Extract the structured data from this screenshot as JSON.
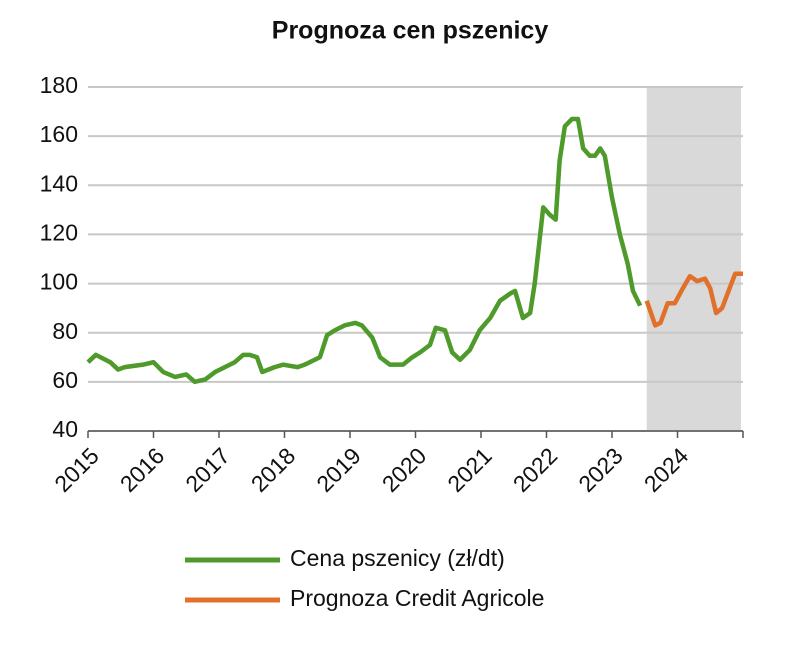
{
  "chart_data": {
    "type": "line",
    "title": "Prognoza cen pszenicy",
    "xlim": [
      2015,
      2025
    ],
    "xticks": [
      2015,
      2016,
      2017,
      2018,
      2019,
      2020,
      2021,
      2022,
      2023,
      2024
    ],
    "ylim": [
      40,
      180
    ],
    "yticks": [
      40,
      60,
      80,
      100,
      120,
      140,
      160,
      180
    ],
    "grid": true,
    "shade": [
      2023.53,
      2024.97
    ],
    "shade_color": "#d9d9d9",
    "series": [
      {
        "name": "Cena pszenicy (zł/dt)",
        "color": "#4e9a2a",
        "x": [
          2015.0,
          2015.12,
          2015.34,
          2015.46,
          2015.56,
          2015.84,
          2016.0,
          2016.15,
          2016.33,
          2016.5,
          2016.63,
          2016.79,
          2016.94,
          2017.09,
          2017.24,
          2017.37,
          2017.47,
          2017.58,
          2017.66,
          2017.85,
          2017.98,
          2018.2,
          2018.31,
          2018.54,
          2018.65,
          2018.77,
          2018.92,
          2019.08,
          2019.18,
          2019.34,
          2019.46,
          2019.61,
          2019.81,
          2019.95,
          2020.07,
          2020.22,
          2020.31,
          2020.45,
          2020.56,
          2020.68,
          2020.83,
          2020.98,
          2021.14,
          2021.29,
          2021.45,
          2021.52,
          2021.64,
          2021.75,
          2021.82,
          2021.95,
          2022.05,
          2022.14,
          2022.2,
          2022.28,
          2022.39,
          2022.48,
          2022.56,
          2022.66,
          2022.74,
          2022.82,
          2022.89,
          2023.0,
          2023.12,
          2023.24,
          2023.32,
          2023.43
        ],
        "values": [
          68,
          71,
          68,
          65,
          66,
          67,
          68,
          64,
          62,
          63,
          60,
          61,
          64,
          66,
          68,
          71,
          71,
          70,
          64,
          66,
          67,
          66,
          67,
          70,
          79,
          81,
          83,
          84,
          83,
          78,
          70,
          67,
          67,
          70,
          72,
          75,
          82,
          81,
          72,
          69,
          73,
          81,
          86,
          93,
          96,
          97,
          86,
          88,
          100,
          131,
          128,
          126,
          150,
          164,
          167,
          167,
          155,
          152,
          152,
          155,
          152,
          135,
          120,
          108,
          97,
          91
        ]
      },
      {
        "name": "Prognoza Credit Agricole",
        "color": "#e0702a",
        "x": [
          2023.53,
          2023.66,
          2023.74,
          2023.85,
          2023.96,
          2024.08,
          2024.19,
          2024.3,
          2024.42,
          2024.5,
          2024.59,
          2024.68,
          2024.88,
          2025.0
        ],
        "values": [
          93,
          83,
          84,
          92,
          92,
          98,
          103,
          101,
          102,
          98,
          88,
          90,
          104,
          104
        ]
      }
    ]
  }
}
